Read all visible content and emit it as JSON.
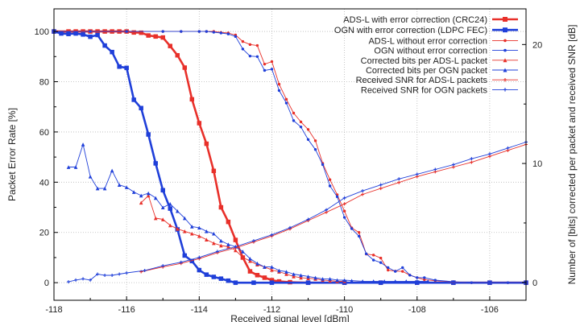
{
  "chart_data": {
    "type": "line",
    "title": "",
    "xlabel": "Received signal level [dBm]",
    "ylabel": "Packet Error Rate [%]",
    "y2label": "Number of [bits] corrected per packet and received SNR [dB]",
    "xlim": [
      -118,
      -105
    ],
    "ylim": [
      -7,
      109
    ],
    "y2lim": [
      -1.5,
      23
    ],
    "grid": true,
    "legend_position": "top-right",
    "xticks": [
      "-118",
      "-116",
      "-114",
      "-112",
      "-110",
      "-108",
      "-106"
    ],
    "yticks": [
      "0",
      "20",
      "40",
      "60",
      "80",
      "100"
    ],
    "y2ticks": [
      "0",
      "10",
      "20"
    ],
    "colors": {
      "red": "#e8302a",
      "blue": "#1f3fd9"
    },
    "series": [
      {
        "name": "ADS-L with error correction (CRC24)",
        "axis": "left",
        "color": "#e8302a",
        "marker": "square",
        "weight": "bold",
        "x": [
          -118,
          -117.6,
          -117.4,
          -117.2,
          -117,
          -116.8,
          -116.6,
          -116.4,
          -116.2,
          -116,
          -115.8,
          -115.6,
          -115.4,
          -115.2,
          -115,
          -114.8,
          -114.6,
          -114.4,
          -114.2,
          -114,
          -113.8,
          -113.6,
          -113.4,
          -113.2,
          -113,
          -112.8,
          -112.6,
          -112.4,
          -112.2,
          -112,
          -111.8,
          -111.5,
          -111,
          -110,
          -109,
          -108,
          -107,
          -106,
          -105
        ],
        "y": [
          100,
          100,
          100,
          100,
          100,
          100,
          100,
          100,
          100,
          100,
          99.6,
          99.5,
          98.4,
          98,
          97.6,
          94.2,
          90.5,
          85.6,
          73,
          63.5,
          55.3,
          44.5,
          30,
          24.2,
          17,
          10,
          4.5,
          3,
          2,
          1,
          0.5,
          0.2,
          0,
          0,
          0,
          0,
          0,
          0,
          0
        ]
      },
      {
        "name": "OGN with error correction (LDPC FEC)",
        "axis": "left",
        "color": "#1f3fd9",
        "marker": "square",
        "weight": "bold",
        "x": [
          -118,
          -117.8,
          -117.6,
          -117.4,
          -117.2,
          -117,
          -116.8,
          -116.6,
          -116.4,
          -116.2,
          -116,
          -115.8,
          -115.6,
          -115.4,
          -115.2,
          -115,
          -114.8,
          -114.6,
          -114.4,
          -114.2,
          -114,
          -113.8,
          -113.6,
          -113.4,
          -113.2,
          -113,
          -112.5,
          -112,
          -111,
          -110,
          -109,
          -108,
          -107,
          -106,
          -105
        ],
        "y": [
          100,
          99.2,
          99,
          99.2,
          98.8,
          97.9,
          98.6,
          94.4,
          91.8,
          86,
          85.5,
          72.8,
          69.5,
          59,
          47.5,
          36.8,
          29.5,
          21.2,
          10.8,
          8.6,
          5,
          3.2,
          2.3,
          1.6,
          0.8,
          0,
          0,
          0,
          0,
          0,
          0,
          0,
          0,
          0,
          0
        ]
      },
      {
        "name": "ADS-L without error correction",
        "axis": "left",
        "color": "#e8302a",
        "marker": "dot",
        "weight": "thin",
        "x": [
          -118,
          -117,
          -116,
          -115,
          -114.5,
          -114,
          -113.8,
          -113.6,
          -113.4,
          -113.2,
          -113,
          -112.8,
          -112.6,
          -112.4,
          -112.2,
          -112,
          -111.8,
          -111.6,
          -111.4,
          -111.2,
          -111,
          -110.8,
          -110.6,
          -110.4,
          -110.2,
          -110,
          -109.8,
          -109.6,
          -109.4,
          -109.2,
          -109,
          -108.8,
          -108.6,
          -108.4,
          -108.2,
          -108,
          -107.8,
          -107.5,
          -107,
          -106.5,
          -106,
          -105.5,
          -105
        ],
        "y": [
          100,
          100,
          100,
          100,
          100,
          100,
          100,
          100,
          99.6,
          99.4,
          98.6,
          96,
          94.8,
          94.4,
          87,
          88,
          79,
          73,
          67.5,
          64,
          61,
          56.5,
          47.5,
          41,
          35,
          28.5,
          21.8,
          20,
          11.4,
          11,
          9.8,
          5,
          4.6,
          4.5,
          3,
          2,
          1.2,
          0.8,
          0.3,
          0,
          0,
          0,
          0
        ]
      },
      {
        "name": "OGN without error correction",
        "axis": "left",
        "color": "#1f3fd9",
        "marker": "dot",
        "weight": "thin",
        "x": [
          -118,
          -117,
          -116,
          -115,
          -114.5,
          -114,
          -113.8,
          -113.6,
          -113.4,
          -113.2,
          -113,
          -112.8,
          -112.6,
          -112.4,
          -112.2,
          -112,
          -111.8,
          -111.6,
          -111.4,
          -111.2,
          -111,
          -110.8,
          -110.6,
          -110.4,
          -110.2,
          -110,
          -109.8,
          -109.6,
          -109.4,
          -109.2,
          -109,
          -108.8,
          -108.6,
          -108.4,
          -108.2,
          -108,
          -107.8,
          -107.5,
          -107,
          -106.5,
          -106,
          -105.5,
          -105
        ],
        "y": [
          100,
          100,
          100,
          100,
          100,
          100,
          100,
          99.7,
          99.4,
          99,
          98,
          93,
          90.2,
          90,
          84.5,
          85,
          76.5,
          71.5,
          64.5,
          62,
          57,
          53,
          47,
          38.5,
          34.2,
          26,
          21.5,
          18.5,
          11.5,
          9,
          8,
          6,
          4.5,
          6,
          3,
          2,
          2,
          1,
          0.4,
          0,
          0,
          0,
          0
        ]
      },
      {
        "name": "Corrected bits per ADS-L packet",
        "axis": "right",
        "color": "#e8302a",
        "marker": "triangle",
        "weight": "thin",
        "x": [
          -115.6,
          -115.4,
          -115.2,
          -115,
          -114.8,
          -114.6,
          -114.4,
          -114.2,
          -114,
          -113.8,
          -113.6,
          -113.4,
          -113.2,
          -113,
          -112.8,
          -112.6,
          -112.4,
          -112.2,
          -112,
          -111.8,
          -111.6,
          -111.4,
          -111.2,
          -111,
          -110.8,
          -110.6,
          -110.4,
          -110.2,
          -110
        ],
        "y": [
          6.7,
          7.3,
          5.4,
          5.3,
          4.8,
          4.5,
          4.3,
          4.1,
          3.9,
          3.6,
          3.3,
          3.1,
          3.0,
          2.7,
          2.1,
          1.8,
          1.5,
          1.3,
          1.05,
          0.9,
          0.7,
          0.5,
          0.4,
          0.35,
          0.3,
          0.2,
          0.15,
          0.1,
          0.1
        ]
      },
      {
        "name": "Corrected bits per OGN packet",
        "axis": "right",
        "color": "#1f3fd9",
        "marker": "triangle",
        "weight": "thin",
        "x": [
          -117.6,
          -117.4,
          -117.2,
          -117,
          -116.8,
          -116.6,
          -116.4,
          -116.2,
          -116,
          -115.8,
          -115.6,
          -115.4,
          -115.2,
          -115,
          -114.8,
          -114.6,
          -114.4,
          -114.2,
          -114,
          -113.8,
          -113.6,
          -113.4,
          -113.2,
          -113,
          -112.8,
          -112.6,
          -112.4,
          -112.2,
          -112,
          -111.8,
          -111.6,
          -111.4,
          -111.2,
          -111,
          -110.8,
          -110.6,
          -110.4,
          -110.2,
          -110,
          -109.8,
          -109.5,
          -109.2,
          -108.9,
          -108.6,
          -108.3,
          -108,
          -107.7
        ],
        "y": [
          9.7,
          9.7,
          11.6,
          8.9,
          7.9,
          7.9,
          9.4,
          8.2,
          8.0,
          7.6,
          7.3,
          7.5,
          7.1,
          6.3,
          6.6,
          6.0,
          5.4,
          4.7,
          4.6,
          4.3,
          4.1,
          3.5,
          3.2,
          3.0,
          2.6,
          2.0,
          1.6,
          1.3,
          1.3,
          1.0,
          0.9,
          0.7,
          0.6,
          0.5,
          0.4,
          0.3,
          0.3,
          0.2,
          0.2,
          0.15,
          0.1,
          0.1,
          0.1,
          0.1,
          0.1,
          0.1,
          0.1
        ]
      },
      {
        "name": "Received SNR for ADS-L packets",
        "axis": "right",
        "color": "#e8302a",
        "marker": "plus",
        "weight": "thin",
        "x": [
          -115.6,
          -115,
          -114.5,
          -114,
          -113.5,
          -113,
          -112.5,
          -112,
          -111.5,
          -111,
          -110.5,
          -110,
          -109.5,
          -109,
          -108.5,
          -108,
          -107.5,
          -107,
          -106.5,
          -106,
          -105.5,
          -105
        ],
        "y": [
          0.9,
          1.3,
          1.6,
          2.0,
          2.5,
          2.9,
          3.4,
          3.9,
          4.5,
          5.2,
          5.9,
          6.6,
          7.4,
          7.9,
          8.4,
          8.9,
          9.3,
          9.7,
          10.1,
          10.6,
          11.1,
          11.6
        ]
      },
      {
        "name": "Received SNR for OGN packets",
        "axis": "right",
        "color": "#1f3fd9",
        "marker": "plus",
        "weight": "thin",
        "x": [
          -117.6,
          -117.4,
          -117.2,
          -117,
          -116.8,
          -116.6,
          -116.4,
          -116.2,
          -116,
          -115.5,
          -115,
          -114.5,
          -114,
          -113.5,
          -113,
          -112.5,
          -112,
          -111.5,
          -111,
          -110.5,
          -110,
          -109.5,
          -109,
          -108.5,
          -108,
          -107.5,
          -107,
          -106.5,
          -106,
          -105.5,
          -105
        ],
        "y": [
          0.05,
          0.2,
          0.3,
          0.2,
          0.7,
          0.6,
          0.6,
          0.7,
          0.8,
          1.0,
          1.4,
          1.7,
          2.1,
          2.6,
          3.0,
          3.5,
          4.0,
          4.6,
          5.3,
          6.1,
          7.1,
          7.7,
          8.2,
          8.7,
          9.1,
          9.5,
          9.9,
          10.4,
          10.8,
          11.3,
          11.8
        ]
      }
    ]
  }
}
